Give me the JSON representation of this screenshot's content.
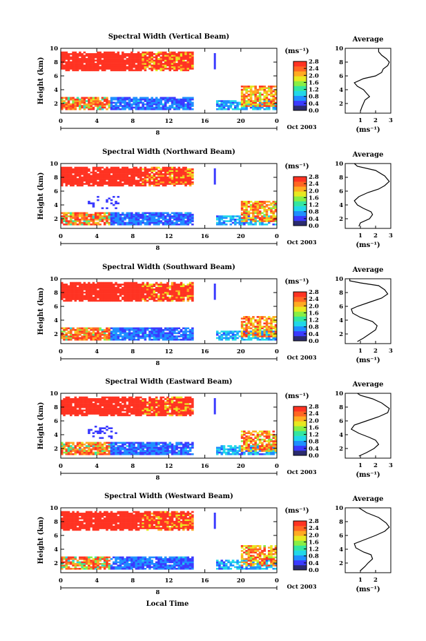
{
  "chart_data": {
    "type": "heatmap",
    "global": {
      "x_axis_label": "Local Time",
      "date_label": "Oct 2003",
      "colorbar_unit": "(ms⁻¹)",
      "colorbar_ticks": [
        "2.8",
        "2.4",
        "2.0",
        "1.6",
        "1.2",
        "0.8",
        "0.4",
        "0.0"
      ],
      "colorbar_range": [
        0.0,
        2.8
      ],
      "x_ticks": [
        "0",
        "4",
        "8",
        "12",
        "16",
        "20",
        "0"
      ],
      "x_range_hours": [
        0,
        24
      ],
      "y_range_km": [
        0.6,
        10
      ],
      "y_ticks": [
        "2",
        "4",
        "6",
        "8",
        "10"
      ],
      "y_label": "Height (km)",
      "day_marker": "8",
      "data_gap_hours": [
        14.8,
        17.2
      ],
      "avg_title": "Average",
      "avg_unit": "(ms⁻¹)",
      "colormap": [
        "#2b2b6e",
        "#3a3aff",
        "#1f8fff",
        "#22d8e8",
        "#33e6a0",
        "#88ee44",
        "#e8e820",
        "#ffaa22",
        "#ff6622",
        "#ff3322"
      ]
    },
    "panels": [
      {
        "title": "Spectral Width (Vertical Beam)",
        "avg_x_ticks": [
          "1",
          "2",
          "3"
        ],
        "avg_xlim": [
          0,
          3
        ],
        "avg_profile": [
          [
            1.0,
            0.9
          ],
          [
            1.1,
            1.5
          ],
          [
            1.2,
            2.0
          ],
          [
            1.3,
            2.5
          ],
          [
            1.6,
            3.0
          ],
          [
            1.4,
            3.5
          ],
          [
            1.2,
            4.0
          ],
          [
            0.8,
            4.5
          ],
          [
            0.6,
            5.0
          ],
          [
            1.2,
            5.6
          ],
          [
            2.0,
            6.0
          ],
          [
            2.4,
            6.5
          ],
          [
            2.5,
            7.0
          ],
          [
            2.8,
            7.5
          ],
          [
            2.9,
            8.0
          ],
          [
            2.7,
            8.5
          ],
          [
            2.4,
            9.0
          ],
          [
            2.2,
            9.5
          ],
          [
            2.2,
            10.0
          ]
        ]
      },
      {
        "title": "Spectral Width (Northward Beam)",
        "avg_x_ticks": [
          "1",
          "2",
          "3"
        ],
        "avg_xlim": [
          0,
          3
        ],
        "avg_profile": [
          [
            0.9,
            0.9
          ],
          [
            1.0,
            1.4
          ],
          [
            1.6,
            2.0
          ],
          [
            1.8,
            2.6
          ],
          [
            1.7,
            3.0
          ],
          [
            1.2,
            3.5
          ],
          [
            0.8,
            4.0
          ],
          [
            0.6,
            4.6
          ],
          [
            0.9,
            5.2
          ],
          [
            1.5,
            5.8
          ],
          [
            2.2,
            6.3
          ],
          [
            2.6,
            6.8
          ],
          [
            2.9,
            7.4
          ],
          [
            2.6,
            8.2
          ],
          [
            2.0,
            9.0
          ],
          [
            0.8,
            9.6
          ],
          [
            0.6,
            10.0
          ]
        ]
      },
      {
        "title": "Spectral Width (Southward Beam)",
        "avg_x_ticks": [
          "1",
          "2",
          "3"
        ],
        "avg_xlim": [
          0,
          3
        ],
        "avg_profile": [
          [
            0.8,
            0.9
          ],
          [
            1.2,
            1.4
          ],
          [
            1.6,
            2.0
          ],
          [
            2.0,
            2.6
          ],
          [
            2.1,
            3.2
          ],
          [
            1.8,
            3.8
          ],
          [
            1.0,
            4.4
          ],
          [
            0.5,
            5.0
          ],
          [
            0.4,
            5.6
          ],
          [
            0.8,
            6.0
          ],
          [
            1.6,
            6.6
          ],
          [
            2.4,
            7.2
          ],
          [
            2.8,
            7.8
          ],
          [
            2.6,
            8.4
          ],
          [
            2.2,
            9.0
          ],
          [
            1.0,
            9.4
          ],
          [
            0.3,
            9.7
          ],
          [
            0.3,
            10.0
          ]
        ]
      },
      {
        "title": "Spectral Width (Eastward Beam)",
        "avg_x_ticks": [
          "1",
          "2",
          "3"
        ],
        "avg_xlim": [
          0,
          3
        ],
        "avg_profile": [
          [
            0.9,
            0.9
          ],
          [
            1.4,
            1.4
          ],
          [
            1.9,
            2.0
          ],
          [
            2.2,
            2.6
          ],
          [
            2.0,
            3.2
          ],
          [
            1.6,
            3.6
          ],
          [
            0.9,
            4.2
          ],
          [
            0.4,
            4.8
          ],
          [
            0.6,
            5.4
          ],
          [
            1.4,
            6.0
          ],
          [
            2.2,
            6.6
          ],
          [
            2.8,
            7.2
          ],
          [
            2.9,
            7.8
          ],
          [
            2.4,
            8.6
          ],
          [
            1.8,
            9.2
          ],
          [
            1.0,
            9.7
          ],
          [
            0.8,
            10.0
          ]
        ]
      },
      {
        "title": "Spectral Width (Westward Beam)",
        "avg_x_ticks": [
          "1",
          "2"
        ],
        "avg_xlim": [
          0,
          3
        ],
        "avg_profile": [
          [
            1.0,
            0.9
          ],
          [
            1.3,
            1.5
          ],
          [
            1.5,
            2.0
          ],
          [
            1.8,
            2.6
          ],
          [
            1.7,
            3.2
          ],
          [
            1.2,
            3.6
          ],
          [
            0.7,
            4.2
          ],
          [
            0.6,
            4.8
          ],
          [
            1.3,
            5.4
          ],
          [
            2.0,
            6.0
          ],
          [
            2.6,
            6.6
          ],
          [
            2.9,
            7.2
          ],
          [
            2.7,
            7.8
          ],
          [
            2.2,
            8.6
          ],
          [
            1.4,
            9.3
          ],
          [
            0.9,
            10.0
          ]
        ]
      }
    ]
  }
}
